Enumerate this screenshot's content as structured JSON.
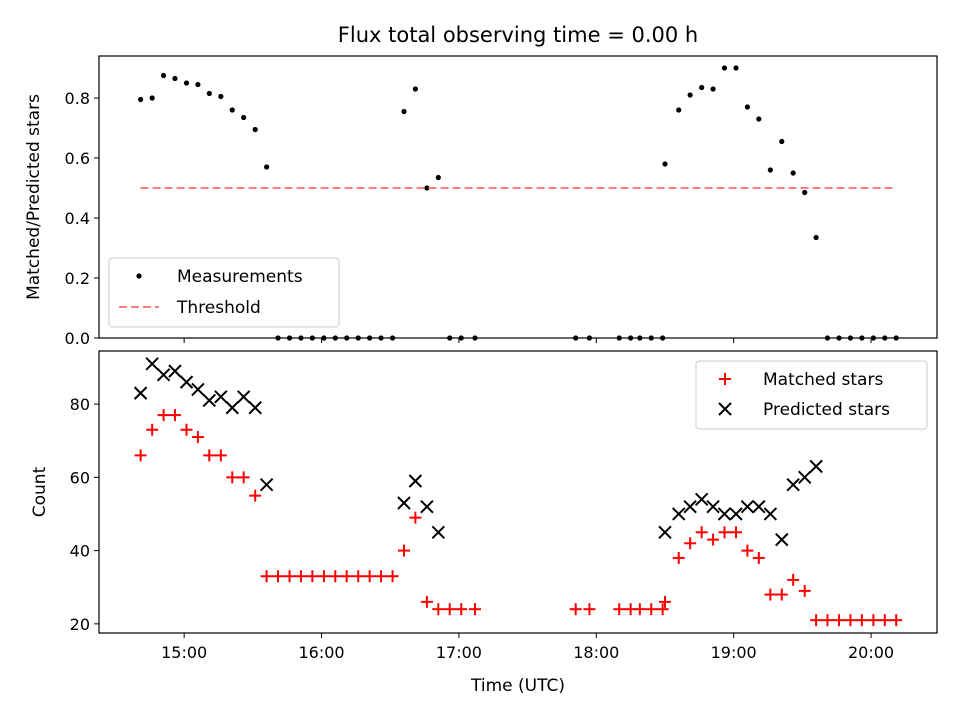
{
  "chart_data": [
    {
      "type": "scatter",
      "title": "Flux total observing time = 0.00 h",
      "xlabel": "",
      "ylabel": "Matched/Predicted stars",
      "xlim": [
        14.38,
        20.48
      ],
      "ylim": [
        0.0,
        0.94
      ],
      "yticks": [
        0.0,
        0.2,
        0.4,
        0.6,
        0.8
      ],
      "yticklabels": [
        "0.0",
        "0.2",
        "0.4",
        "0.6",
        "0.8"
      ],
      "legend_position": "lower-left",
      "series": [
        {
          "name": "Measurements",
          "marker": "dot",
          "color": "#000000",
          "points": [
            [
              14.683,
              0.795
            ],
            [
              14.767,
              0.8
            ],
            [
              14.85,
              0.875
            ],
            [
              14.933,
              0.865
            ],
            [
              15.017,
              0.85
            ],
            [
              15.1,
              0.845
            ],
            [
              15.183,
              0.815
            ],
            [
              15.267,
              0.805
            ],
            [
              15.35,
              0.76
            ],
            [
              15.433,
              0.735
            ],
            [
              15.517,
              0.695
            ],
            [
              15.6,
              0.57
            ],
            [
              15.683,
              0.0
            ],
            [
              15.767,
              0.0
            ],
            [
              15.85,
              0.0
            ],
            [
              15.933,
              0.0
            ],
            [
              16.017,
              0.0
            ],
            [
              16.1,
              0.0
            ],
            [
              16.183,
              0.0
            ],
            [
              16.267,
              0.0
            ],
            [
              16.35,
              0.0
            ],
            [
              16.433,
              0.0
            ],
            [
              16.517,
              0.0
            ],
            [
              16.6,
              0.755
            ],
            [
              16.683,
              0.83
            ],
            [
              16.767,
              0.5
            ],
            [
              16.85,
              0.535
            ],
            [
              16.933,
              0.0
            ],
            [
              17.017,
              0.0
            ],
            [
              17.117,
              0.0
            ],
            [
              17.85,
              0.0
            ],
            [
              17.95,
              0.0
            ],
            [
              18.167,
              0.0
            ],
            [
              18.25,
              0.0
            ],
            [
              18.317,
              0.0
            ],
            [
              18.4,
              0.0
            ],
            [
              18.483,
              0.0
            ],
            [
              18.5,
              0.58
            ],
            [
              18.6,
              0.76
            ],
            [
              18.683,
              0.81
            ],
            [
              18.767,
              0.835
            ],
            [
              18.85,
              0.83
            ],
            [
              18.933,
              0.9
            ],
            [
              19.017,
              0.9
            ],
            [
              19.1,
              0.77
            ],
            [
              19.183,
              0.73
            ],
            [
              19.267,
              0.56
            ],
            [
              19.35,
              0.655
            ],
            [
              19.433,
              0.55
            ],
            [
              19.517,
              0.485
            ],
            [
              19.6,
              0.335
            ],
            [
              19.683,
              0.0
            ],
            [
              19.767,
              0.0
            ],
            [
              19.85,
              0.0
            ],
            [
              19.933,
              0.0
            ],
            [
              20.017,
              0.0
            ],
            [
              20.1,
              0.0
            ],
            [
              20.183,
              0.0
            ]
          ]
        },
        {
          "name": "Threshold",
          "line": "dashed",
          "color": "#ff7f7f",
          "points": [
            [
              14.683,
              0.5
            ],
            [
              20.183,
              0.5
            ]
          ]
        }
      ]
    },
    {
      "type": "scatter",
      "title": "",
      "xlabel": "Time (UTC)",
      "ylabel": "Count",
      "xlim": [
        14.38,
        20.48
      ],
      "ylim": [
        17.5,
        94.5
      ],
      "yticks": [
        20,
        40,
        60,
        80
      ],
      "yticklabels": [
        "20",
        "40",
        "60",
        "80"
      ],
      "xticks": [
        15,
        16,
        17,
        18,
        19,
        20
      ],
      "xticklabels": [
        "15:00",
        "16:00",
        "17:00",
        "18:00",
        "19:00",
        "20:00"
      ],
      "legend_position": "top-right",
      "series": [
        {
          "name": "Matched stars",
          "marker": "plus",
          "color": "#ff0000",
          "points": [
            [
              14.683,
              66
            ],
            [
              14.767,
              73
            ],
            [
              14.85,
              77
            ],
            [
              14.933,
              77
            ],
            [
              15.017,
              73
            ],
            [
              15.1,
              71
            ],
            [
              15.183,
              66
            ],
            [
              15.267,
              66
            ],
            [
              15.35,
              60
            ],
            [
              15.433,
              60
            ],
            [
              15.517,
              55
            ],
            [
              15.6,
              33
            ],
            [
              15.683,
              33
            ],
            [
              15.767,
              33
            ],
            [
              15.85,
              33
            ],
            [
              15.933,
              33
            ],
            [
              16.017,
              33
            ],
            [
              16.1,
              33
            ],
            [
              16.183,
              33
            ],
            [
              16.267,
              33
            ],
            [
              16.35,
              33
            ],
            [
              16.433,
              33
            ],
            [
              16.517,
              33
            ],
            [
              16.6,
              40
            ],
            [
              16.683,
              49
            ],
            [
              16.767,
              26
            ],
            [
              16.85,
              24
            ],
            [
              16.933,
              24
            ],
            [
              17.017,
              24
            ],
            [
              17.117,
              24
            ],
            [
              17.85,
              24
            ],
            [
              17.95,
              24
            ],
            [
              18.167,
              24
            ],
            [
              18.25,
              24
            ],
            [
              18.317,
              24
            ],
            [
              18.4,
              24
            ],
            [
              18.483,
              24
            ],
            [
              18.5,
              26
            ],
            [
              18.6,
              38
            ],
            [
              18.683,
              42
            ],
            [
              18.767,
              45
            ],
            [
              18.85,
              43
            ],
            [
              18.933,
              45
            ],
            [
              19.017,
              45
            ],
            [
              19.1,
              40
            ],
            [
              19.183,
              38
            ],
            [
              19.267,
              28
            ],
            [
              19.35,
              28
            ],
            [
              19.433,
              32
            ],
            [
              19.517,
              29
            ],
            [
              19.6,
              21
            ],
            [
              19.683,
              21
            ],
            [
              19.767,
              21
            ],
            [
              19.85,
              21
            ],
            [
              19.933,
              21
            ],
            [
              20.017,
              21
            ],
            [
              20.1,
              21
            ],
            [
              20.183,
              21
            ]
          ]
        },
        {
          "name": "Predicted stars",
          "marker": "x",
          "color": "#000000",
          "points": [
            [
              14.683,
              83
            ],
            [
              14.767,
              91
            ],
            [
              14.85,
              88
            ],
            [
              14.933,
              89
            ],
            [
              15.017,
              86
            ],
            [
              15.1,
              84
            ],
            [
              15.183,
              81
            ],
            [
              15.267,
              82
            ],
            [
              15.35,
              79
            ],
            [
              15.433,
              82
            ],
            [
              15.517,
              79
            ],
            [
              15.6,
              58
            ],
            [
              16.6,
              53
            ],
            [
              16.683,
              59
            ],
            [
              16.767,
              52
            ],
            [
              16.85,
              45
            ],
            [
              18.5,
              45
            ],
            [
              18.6,
              50
            ],
            [
              18.683,
              52
            ],
            [
              18.767,
              54
            ],
            [
              18.85,
              52
            ],
            [
              18.933,
              50
            ],
            [
              19.017,
              50
            ],
            [
              19.1,
              52
            ],
            [
              19.183,
              52
            ],
            [
              19.267,
              50
            ],
            [
              19.35,
              43
            ],
            [
              19.433,
              58
            ],
            [
              19.517,
              60
            ],
            [
              19.6,
              63
            ]
          ]
        }
      ]
    }
  ]
}
